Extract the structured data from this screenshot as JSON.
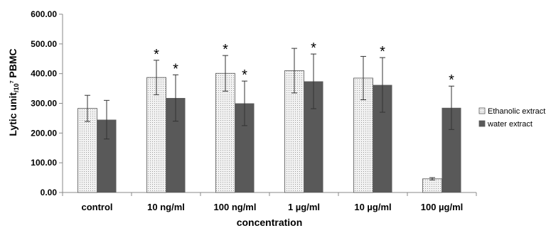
{
  "chart_data": {
    "type": "bar",
    "xlabel": "concentration",
    "ylabel": "Lytic unit/10⁷ PBMC",
    "ylim": [
      0,
      600
    ],
    "yticks": [
      "0.00",
      "100.00",
      "200.00",
      "300.00",
      "400.00",
      "500.00",
      "600.00"
    ],
    "categories": [
      "control",
      "10 ng/ml",
      "100 ng/ml",
      "1 µg/ml",
      "10 µg/ml",
      "100 µg/ml"
    ],
    "series": [
      {
        "name": "Ethanolic extract",
        "color": "#ececec",
        "values": [
          283,
          387,
          401,
          410,
          385,
          46
        ],
        "errors": [
          44,
          58,
          60,
          75,
          73,
          4
        ],
        "significant": [
          false,
          true,
          true,
          false,
          false,
          false
        ]
      },
      {
        "name": "water extract",
        "color": "#595959",
        "values": [
          245,
          318,
          300,
          374,
          362,
          285
        ],
        "errors": [
          65,
          78,
          75,
          92,
          92,
          73
        ],
        "significant": [
          false,
          true,
          true,
          true,
          true,
          true
        ]
      }
    ],
    "significance_marker": "*",
    "grid": false,
    "legend_position": "right"
  }
}
